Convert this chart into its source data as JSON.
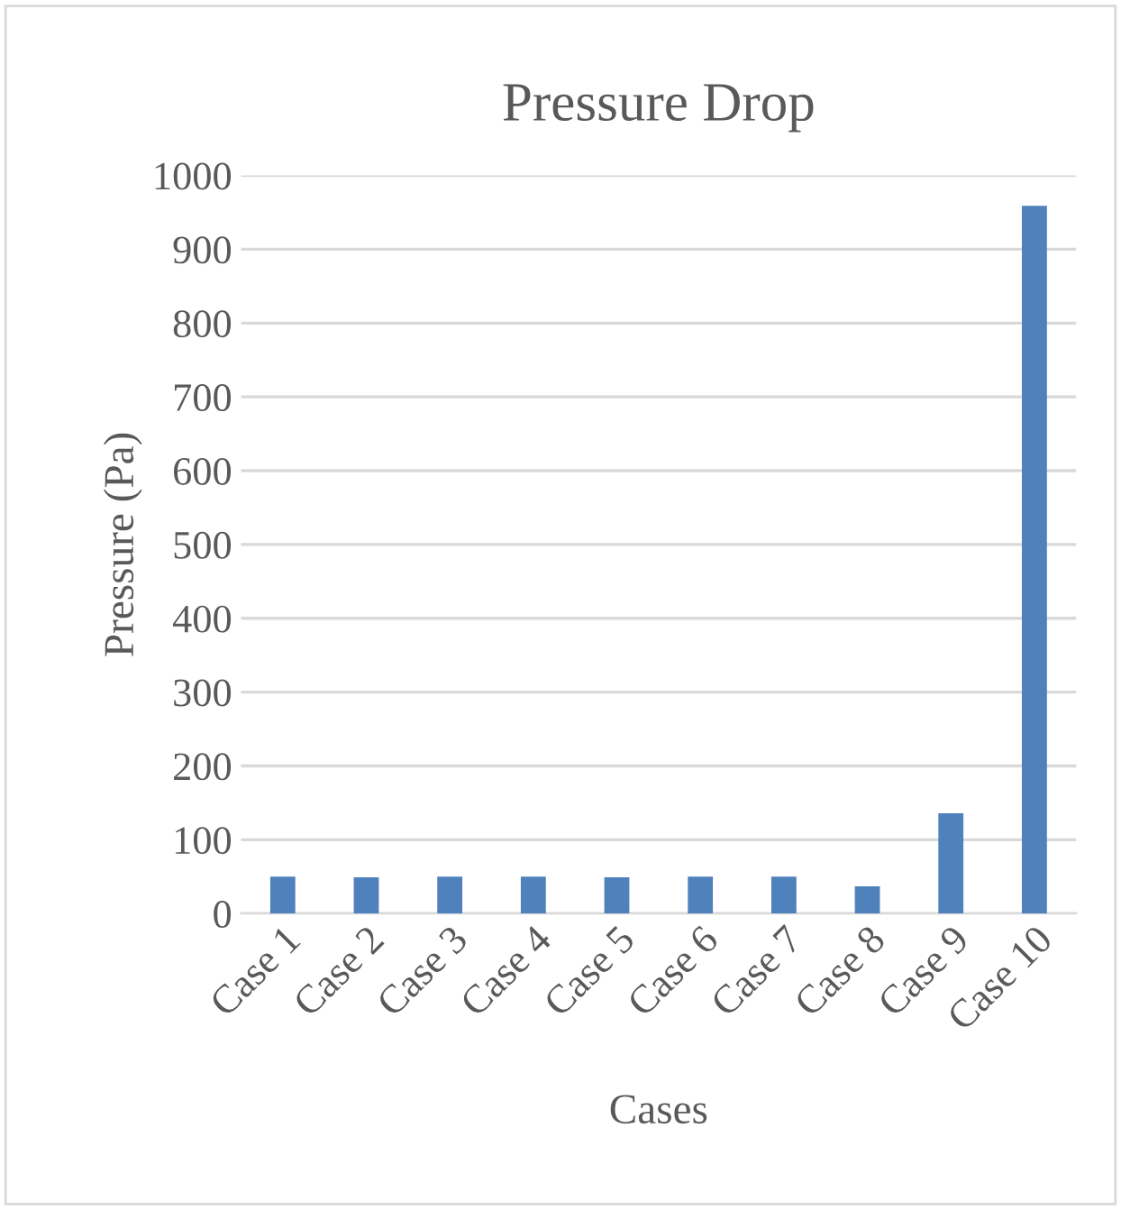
{
  "chart_data": {
    "type": "bar",
    "title": "Pressure Drop",
    "xlabel": "Cases",
    "ylabel": "Pressure (Pa)",
    "categories": [
      "Case 1",
      "Case 2",
      "Case 3",
      "Case 4",
      "Case 5",
      "Case 6",
      "Case 7",
      "Case 8",
      "Case 9",
      "Case 10"
    ],
    "values": [
      50,
      49,
      50,
      50,
      49,
      50,
      50,
      37,
      136,
      959
    ],
    "color": "#4f81bd",
    "ylim": [
      0,
      1000
    ],
    "yticks": [
      0,
      100,
      200,
      300,
      400,
      500,
      600,
      700,
      800,
      900,
      1000
    ],
    "grid": "y"
  }
}
